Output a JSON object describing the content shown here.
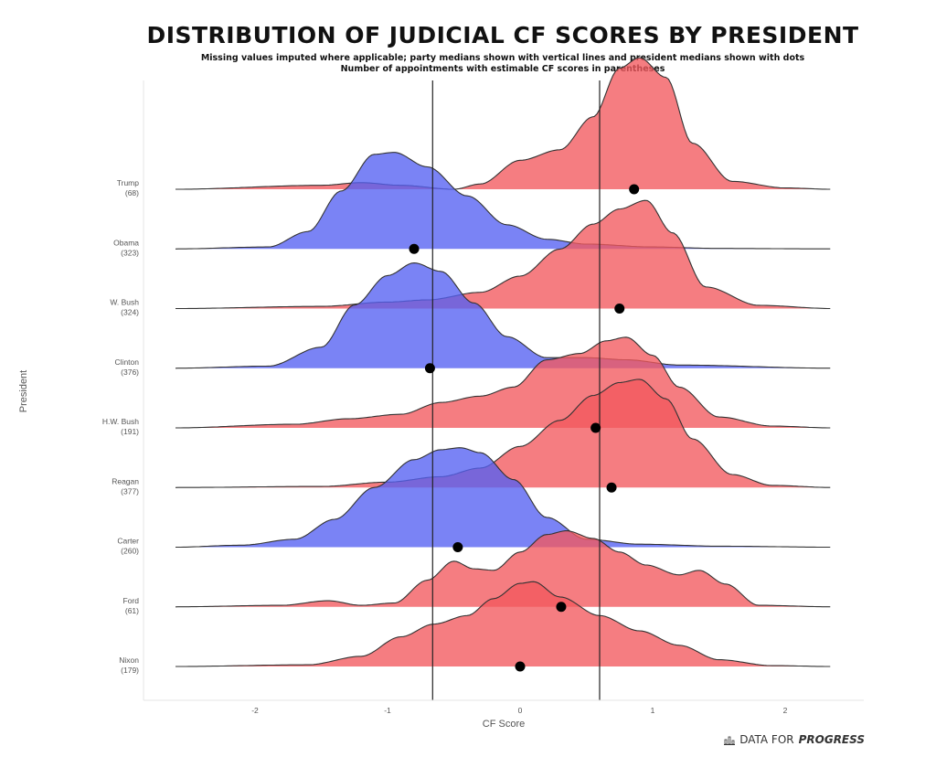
{
  "title": "DISTRIBUTION OF JUDICIAL CF SCORES BY PRESIDENT",
  "subtitle1": "Missing values imputed where applicable; party medians shown with vertical lines and president medians shown with dots",
  "subtitle2": "Number of appointments with estimable CF scores in parentheses",
  "brand": {
    "prefix": "DATA FOR ",
    "emphasis": "PROGRESS",
    "icon": "bar-chart-icon"
  },
  "colors": {
    "republican": "#f2585e",
    "democrat": "#5560f2",
    "median_dot": "#000000"
  },
  "chart_data": {
    "type": "ridgeline",
    "xlabel": "CF Score",
    "ylabel": "President",
    "xlim": [
      -2.8,
      2.6
    ],
    "xticks": [
      -2,
      -1,
      0,
      1,
      2
    ],
    "grid": false,
    "party_medians": [
      -0.66,
      0.6
    ],
    "presidents": [
      {
        "name": "Trump",
        "count": "(68)",
        "party": "R",
        "median": 0.86,
        "peak": 0.9,
        "knots": [
          [
            -2.6,
            0
          ],
          [
            -1.5,
            0.03
          ],
          [
            -1.2,
            0.05
          ],
          [
            -0.9,
            0.03
          ],
          [
            -0.5,
            0
          ],
          [
            -0.3,
            0.04
          ],
          [
            0,
            0.22
          ],
          [
            0.3,
            0.3
          ],
          [
            0.55,
            0.55
          ],
          [
            0.75,
            0.92
          ],
          [
            0.9,
            1
          ],
          [
            1.1,
            0.85
          ],
          [
            1.3,
            0.35
          ],
          [
            1.6,
            0.06
          ],
          [
            2.0,
            0.01
          ],
          [
            2.35,
            0
          ]
        ]
      },
      {
        "name": "Obama",
        "count": "(323)",
        "party": "D",
        "median": -0.8,
        "peak": 0.66,
        "knots": [
          [
            -2.6,
            0
          ],
          [
            -1.9,
            0.02
          ],
          [
            -1.6,
            0.18
          ],
          [
            -1.35,
            0.6
          ],
          [
            -1.1,
            0.98
          ],
          [
            -0.95,
            1
          ],
          [
            -0.7,
            0.85
          ],
          [
            -0.4,
            0.55
          ],
          [
            -0.1,
            0.25
          ],
          [
            0.2,
            0.1
          ],
          [
            0.5,
            0.05
          ],
          [
            1.0,
            0.02
          ],
          [
            1.5,
            0.005
          ],
          [
            2.35,
            0
          ]
        ]
      },
      {
        "name": "W. Bush",
        "count": "(324)",
        "party": "R",
        "median": 0.75,
        "peak": 0.74,
        "knots": [
          [
            -2.6,
            0
          ],
          [
            -1.5,
            0.02
          ],
          [
            -1.0,
            0.06
          ],
          [
            -0.7,
            0.08
          ],
          [
            -0.3,
            0.15
          ],
          [
            0,
            0.3
          ],
          [
            0.3,
            0.55
          ],
          [
            0.55,
            0.78
          ],
          [
            0.75,
            0.92
          ],
          [
            0.95,
            1
          ],
          [
            1.15,
            0.7
          ],
          [
            1.4,
            0.2
          ],
          [
            1.8,
            0.03
          ],
          [
            2.35,
            0
          ]
        ]
      },
      {
        "name": "Clinton",
        "count": "(376)",
        "party": "D",
        "median": -0.68,
        "peak": 0.72,
        "knots": [
          [
            -2.6,
            0
          ],
          [
            -1.9,
            0.02
          ],
          [
            -1.5,
            0.2
          ],
          [
            -1.25,
            0.6
          ],
          [
            -1.0,
            0.88
          ],
          [
            -0.8,
            1
          ],
          [
            -0.6,
            0.92
          ],
          [
            -0.35,
            0.62
          ],
          [
            -0.1,
            0.3
          ],
          [
            0.2,
            0.1
          ],
          [
            0.5,
            0.1
          ],
          [
            0.8,
            0.08
          ],
          [
            1.2,
            0.03
          ],
          [
            2.35,
            0
          ]
        ]
      },
      {
        "name": "H.W. Bush",
        "count": "(191)",
        "party": "R",
        "median": 0.57,
        "peak": 0.62,
        "knots": [
          [
            -2.6,
            0
          ],
          [
            -1.7,
            0.04
          ],
          [
            -1.3,
            0.1
          ],
          [
            -0.9,
            0.15
          ],
          [
            -0.6,
            0.28
          ],
          [
            -0.3,
            0.35
          ],
          [
            -0.05,
            0.45
          ],
          [
            0.2,
            0.75
          ],
          [
            0.45,
            0.82
          ],
          [
            0.65,
            0.96
          ],
          [
            0.8,
            1
          ],
          [
            1.0,
            0.8
          ],
          [
            1.2,
            0.45
          ],
          [
            1.5,
            0.12
          ],
          [
            1.9,
            0.02
          ],
          [
            2.35,
            0
          ]
        ]
      },
      {
        "name": "Reagan",
        "count": "(377)",
        "party": "R",
        "median": 0.69,
        "peak": 0.74,
        "knots": [
          [
            -2.6,
            0
          ],
          [
            -1.5,
            0.01
          ],
          [
            -1.0,
            0.05
          ],
          [
            -0.6,
            0.1
          ],
          [
            -0.3,
            0.18
          ],
          [
            0,
            0.38
          ],
          [
            0.3,
            0.62
          ],
          [
            0.55,
            0.85
          ],
          [
            0.75,
            0.97
          ],
          [
            0.9,
            1
          ],
          [
            1.1,
            0.82
          ],
          [
            1.3,
            0.45
          ],
          [
            1.6,
            0.12
          ],
          [
            1.9,
            0.02
          ],
          [
            2.35,
            0
          ]
        ]
      },
      {
        "name": "Carter",
        "count": "(260)",
        "party": "D",
        "median": -0.47,
        "peak": 0.68,
        "knots": [
          [
            -2.6,
            0
          ],
          [
            -2.1,
            0.02
          ],
          [
            -1.7,
            0.08
          ],
          [
            -1.4,
            0.28
          ],
          [
            -1.1,
            0.6
          ],
          [
            -0.8,
            0.88
          ],
          [
            -0.6,
            0.98
          ],
          [
            -0.45,
            1
          ],
          [
            -0.3,
            0.95
          ],
          [
            -0.05,
            0.68
          ],
          [
            0.2,
            0.3
          ],
          [
            0.5,
            0.08
          ],
          [
            0.9,
            0.03
          ],
          [
            1.5,
            0.01
          ],
          [
            2.35,
            0
          ]
        ]
      },
      {
        "name": "Ford",
        "count": "(61)",
        "party": "R",
        "median": 0.31,
        "peak": 0.52,
        "knots": [
          [
            -2.6,
            0
          ],
          [
            -1.8,
            0.02
          ],
          [
            -1.45,
            0.08
          ],
          [
            -1.2,
            0.02
          ],
          [
            -0.95,
            0.05
          ],
          [
            -0.7,
            0.35
          ],
          [
            -0.5,
            0.6
          ],
          [
            -0.35,
            0.5
          ],
          [
            -0.2,
            0.48
          ],
          [
            0,
            0.72
          ],
          [
            0.2,
            0.95
          ],
          [
            0.35,
            1
          ],
          [
            0.55,
            0.9
          ],
          [
            0.75,
            0.72
          ],
          [
            0.95,
            0.55
          ],
          [
            1.2,
            0.42
          ],
          [
            1.35,
            0.48
          ],
          [
            1.55,
            0.3
          ],
          [
            1.8,
            0.02
          ],
          [
            2.35,
            0
          ]
        ]
      },
      {
        "name": "Nixon",
        "count": "(179)",
        "party": "R",
        "median": 0.0,
        "peak": 0.58,
        "knots": [
          [
            -2.6,
            0
          ],
          [
            -1.6,
            0.02
          ],
          [
            -1.2,
            0.12
          ],
          [
            -0.9,
            0.35
          ],
          [
            -0.65,
            0.5
          ],
          [
            -0.4,
            0.6
          ],
          [
            -0.2,
            0.8
          ],
          [
            0,
            0.98
          ],
          [
            0.1,
            1
          ],
          [
            0.3,
            0.82
          ],
          [
            0.6,
            0.6
          ],
          [
            0.9,
            0.42
          ],
          [
            1.2,
            0.25
          ],
          [
            1.5,
            0.08
          ],
          [
            1.9,
            0.01
          ],
          [
            2.35,
            0
          ]
        ]
      }
    ]
  }
}
